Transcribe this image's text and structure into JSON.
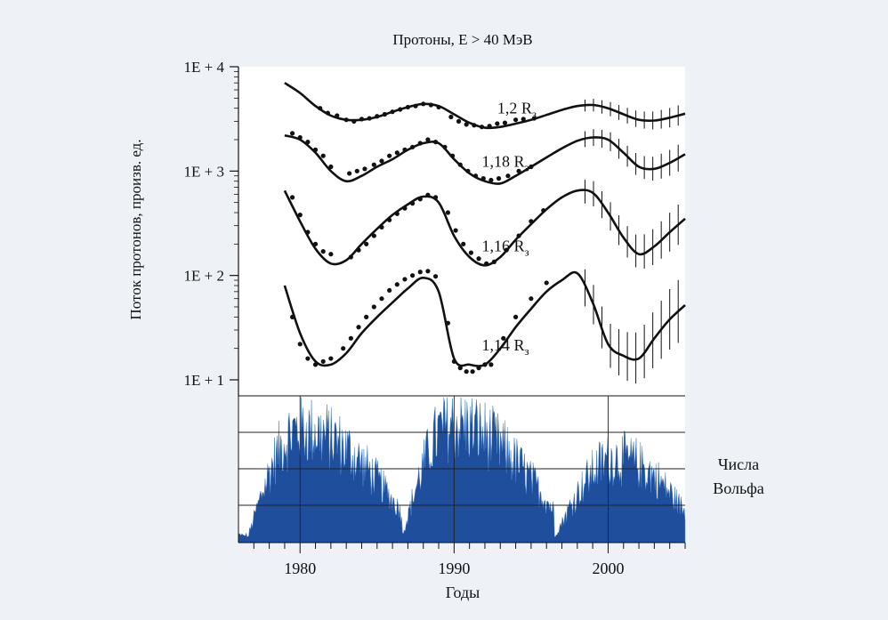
{
  "figure": {
    "title": "Протоны, E > 40 МэВ",
    "ylabel": "Поток протонов, произв. ед.",
    "xlabel": "Годы",
    "wolf_label_line1": "Числа",
    "wolf_label_line2": "Вольфа",
    "colors": {
      "background": "#eef2f7",
      "plot_background": "#ffffff",
      "curve": "#111111",
      "wolf_fill": "#1f4e9c",
      "wolf_light": "#4a86c8"
    }
  },
  "chart_data": [
    {
      "type": "scatter",
      "title": "Протоны, E > 40 МэВ",
      "ylabel": "Поток протонов, произв. ед.",
      "xlabel": "",
      "yscale": "log",
      "ylim": [
        10,
        10000
      ],
      "xlim": [
        1976,
        2005
      ],
      "ytick_labels": [
        "1E + 1",
        "1E + 2",
        "1E + 3",
        "1E + 4"
      ],
      "ytick_values": [
        10,
        100,
        1000,
        10000
      ],
      "series": [
        {
          "name": "1,2 R",
          "name_sub": "з",
          "model": {
            "x": [
              1979,
              1980,
              1981,
              1982,
              1983,
              1984,
              1985,
              1986,
              1987,
              1988,
              1989,
              1990,
              1991,
              1992,
              1993,
              1994,
              1995,
              1996,
              1997,
              1998,
              1999,
              2000,
              2001,
              2002,
              2003,
              2004,
              2005
            ],
            "y": [
              7000,
              5600,
              4200,
              3400,
              3100,
              3100,
              3300,
              3700,
              4100,
              4400,
              4200,
              3500,
              2900,
              2600,
              2650,
              2850,
              3100,
              3450,
              3850,
              4200,
              4300,
              4000,
              3500,
              3100,
              3050,
              3250,
              3550
            ]
          },
          "points": {
            "x": [
              1981.3,
              1981.8,
              1982.4,
              1983.0,
              1983.5,
              1984.0,
              1984.5,
              1985.0,
              1985.5,
              1986.0,
              1986.5,
              1987.0,
              1987.5,
              1988.0,
              1988.5,
              1989.0,
              1989.8,
              1990.3,
              1990.8,
              1991.3,
              1991.8,
              1992.3,
              1992.8,
              1993.3,
              1994.0,
              1994.5,
              1995.2
            ],
            "y": [
              4000,
              3600,
              3400,
              3100,
              3000,
              3150,
              3200,
              3350,
              3500,
              3700,
              3900,
              4100,
              4200,
              4400,
              4300,
              4100,
              3300,
              3000,
              2800,
              2750,
              2650,
              2700,
              2850,
              2900,
              3100,
              3150,
              3200
            ]
          },
          "error_bar_range": [
            1998,
            2005
          ]
        },
        {
          "name": "1,18 R",
          "name_sub": "з",
          "model": {
            "x": [
              1979,
              1980,
              1981,
              1982,
              1983,
              1984,
              1985,
              1986,
              1987,
              1988,
              1989,
              1990,
              1991,
              1992,
              1993,
              1994,
              1995,
              1996,
              1997,
              1998,
              1999,
              2000,
              2001,
              2002,
              2003,
              2004,
              2005
            ],
            "y": [
              2200,
              2000,
              1500,
              1000,
              800,
              900,
              1100,
              1300,
              1600,
              1850,
              1850,
              1300,
              950,
              800,
              760,
              900,
              1100,
              1350,
              1650,
              1950,
              2100,
              2000,
              1500,
              1100,
              1050,
              1200,
              1450
            ]
          },
          "points": {
            "x": [
              1979.5,
              1980.0,
              1980.5,
              1981.0,
              1981.5,
              1982.0,
              1983.2,
              1983.7,
              1984.2,
              1984.8,
              1985.3,
              1985.8,
              1986.3,
              1986.8,
              1987.3,
              1987.8,
              1988.3,
              1988.8,
              1989.4,
              1989.9,
              1990.4,
              1990.9,
              1991.4,
              1991.9,
              1992.4,
              1992.9,
              1993.5,
              1994.2,
              1995.0
            ],
            "y": [
              2300,
              2100,
              1900,
              1600,
              1400,
              1100,
              950,
              1000,
              1050,
              1150,
              1250,
              1400,
              1500,
              1600,
              1700,
              1850,
              2000,
              1900,
              1700,
              1400,
              1150,
              1000,
              900,
              850,
              820,
              850,
              900,
              1000,
              1100
            ]
          },
          "error_bar_range": [
            1998,
            2005
          ]
        },
        {
          "name": "1,16 R",
          "name_sub": "з",
          "model": {
            "x": [
              1979,
              1980,
              1981,
              1982,
              1983,
              1984,
              1985,
              1986,
              1987,
              1988,
              1989,
              1990,
              1991,
              1992,
              1993,
              1994,
              1995,
              1996,
              1997,
              1998,
              1999,
              2000,
              2001,
              2002,
              2003,
              2004,
              2005
            ],
            "y": [
              650,
              330,
              180,
              130,
              140,
              200,
              280,
              380,
              480,
              570,
              500,
              240,
              150,
              125,
              150,
              220,
              310,
              430,
              560,
              650,
              620,
              400,
              230,
              160,
              190,
              260,
              350
            ]
          },
          "points": {
            "x": [
              1979.5,
              1980.0,
              1980.5,
              1981.0,
              1981.5,
              1982.0,
              1983.3,
              1983.8,
              1984.3,
              1984.8,
              1985.3,
              1985.8,
              1986.3,
              1986.8,
              1987.3,
              1987.8,
              1988.3,
              1988.8,
              1989.6,
              1990.1,
              1990.6,
              1991.1,
              1991.6,
              1992.1,
              1992.6,
              1993.4,
              1994.2,
              1995.0,
              1995.8
            ],
            "y": [
              560,
              380,
              260,
              200,
              170,
              160,
              150,
              175,
              200,
              240,
              290,
              340,
              390,
              440,
              490,
              540,
              590,
              560,
              400,
              270,
              200,
              165,
              145,
              130,
              135,
              175,
              240,
              330,
              420
            ]
          },
          "error_bar_range": [
            1998,
            2005
          ]
        },
        {
          "name": "1,14 R",
          "name_sub": "з",
          "model": {
            "x": [
              1979,
              1980,
              1981,
              1982,
              1983,
              1984,
              1985,
              1986,
              1987,
              1988,
              1989,
              1990,
              1991,
              1992,
              1993,
              1994,
              1995,
              1996,
              1997,
              1998,
              1999,
              2000,
              2001,
              2002,
              2003,
              2004,
              2005
            ],
            "y": [
              80,
              28,
              15,
              14,
              18,
              28,
              40,
              55,
              75,
              95,
              70,
              16,
              14,
              14,
              20,
              32,
              48,
              70,
              90,
              105,
              55,
              22,
              17,
              16,
              25,
              38,
              52
            ]
          },
          "points": {
            "x": [
              1979.5,
              1980.0,
              1980.5,
              1981.0,
              1981.5,
              1982.0,
              1982.8,
              1983.3,
              1983.8,
              1984.3,
              1984.8,
              1985.3,
              1985.8,
              1986.3,
              1986.8,
              1987.3,
              1987.8,
              1988.3,
              1988.8,
              1989.6,
              1990.0,
              1990.4,
              1990.8,
              1991.2,
              1991.6,
              1992.0,
              1992.4,
              1993.2,
              1994.0,
              1995.0,
              1996.0
            ],
            "y": [
              40,
              22,
              16,
              14,
              15,
              16,
              20,
              25,
              32,
              40,
              50,
              60,
              72,
              82,
              92,
              100,
              108,
              110,
              98,
              35,
              15,
              13,
              12,
              12,
              13,
              14,
              14,
              25,
              40,
              60,
              85
            ]
          },
          "error_bar_range": [
            1998,
            2005
          ]
        }
      ]
    },
    {
      "type": "area",
      "title": "",
      "ylabel": "",
      "xlabel": "Годы",
      "xlim": [
        1976,
        2005
      ],
      "xticks": [
        1980,
        1990,
        2000
      ],
      "xtick_labels": [
        "1980",
        "1990",
        "2000"
      ],
      "legend": "Числа Вольфа",
      "grid": true,
      "cycles": [
        {
          "start": 1976.6,
          "peak": 1980.0,
          "end": 1986.6
        },
        {
          "start": 1986.6,
          "peak": 1989.8,
          "end": 1996.5
        },
        {
          "start": 1996.5,
          "peak": 2000.5,
          "end": 2005
        }
      ],
      "peak_values_rel": [
        0.95,
        1.0,
        0.7
      ]
    }
  ]
}
